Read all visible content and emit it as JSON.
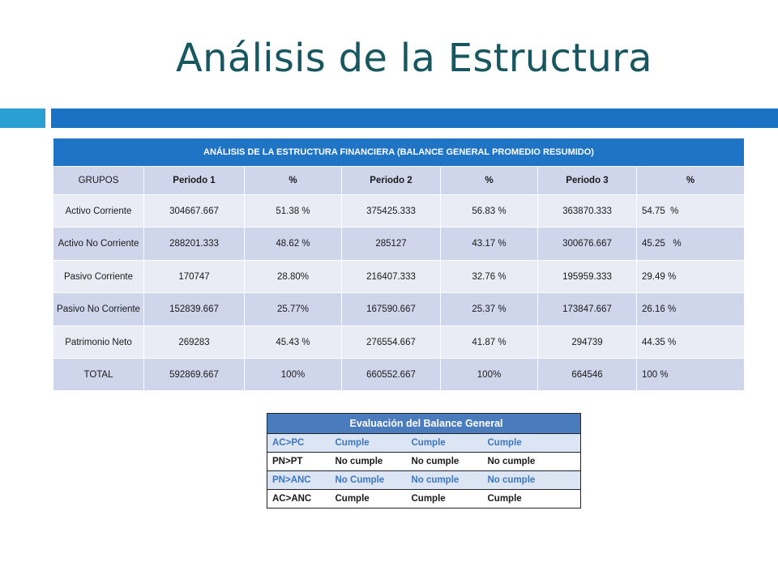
{
  "title": "Análisis de la Estructura",
  "financial_table": {
    "header": "ANÁLISIS DE LA ESTRUCTURA FINANCIERA (BALANCE GENERAL PROMEDIO RESUMIDO)",
    "columns": [
      "GRUPOS",
      "Periodo 1",
      "%",
      "Periodo 2",
      "%",
      "Periodo 3",
      "%"
    ],
    "rows": [
      {
        "grupo": "Activo Corriente",
        "p1": "304667.667",
        "pct1": "51.38 %",
        "p2": "375425.333",
        "pct2": "56.83 %",
        "p3": "363870.333",
        "pct3": "54.75  %"
      },
      {
        "grupo": "Activo No Corriente",
        "p1": "288201.333",
        "pct1": "48.62 %",
        "p2": "285127",
        "pct2": "43.17 %",
        "p3": "300676.667",
        "pct3": "45.25   %"
      },
      {
        "grupo": "Pasivo Corriente",
        "p1": "170747",
        "pct1": "28.80%",
        "p2": "216407.333",
        "pct2": "32.76 %",
        "p3": "195959.333",
        "pct3": "29.49 %"
      },
      {
        "grupo": "Pasivo No Corriente",
        "p1": "152839.667",
        "pct1": "25.77%",
        "p2": "167590.667",
        "pct2": "25.37 %",
        "p3": "173847.667",
        "pct3": "26.16 %"
      },
      {
        "grupo": "Patrimonio Neto",
        "p1": "269283",
        "pct1": "45.43 %",
        "p2": "276554.667",
        "pct2": "41.87 %",
        "p3": "294739",
        "pct3": "44.35 %"
      },
      {
        "grupo": "TOTAL",
        "p1": "592869.667",
        "pct1": "100%",
        "p2": "660552.667",
        "pct2": "100%",
        "p3": "664546",
        "pct3": "100 %"
      }
    ]
  },
  "evaluation_table": {
    "header": "Evaluación del Balance General",
    "rows": [
      {
        "label": "AC>PC",
        "v1": "Cumple",
        "v2": "Cumple",
        "v3": "Cumple"
      },
      {
        "label": "PN>PT",
        "v1": "No cumple",
        "v2": "No cumple",
        "v3": "No cumple"
      },
      {
        "label": "PN>ANC",
        "v1": "No Cumple",
        "v2": "No cumple",
        "v3": "No cumple"
      },
      {
        "label": "AC>ANC",
        "v1": "Cumple",
        "v2": "Cumple",
        "v3": "Cumple"
      }
    ]
  },
  "colors": {
    "title": "#17575f",
    "accent_bar_left": "#2a9fd4",
    "accent_bar_right": "#1972c4",
    "table_header": "#1f74c6",
    "row_light": "#e9ecf5",
    "row_dark": "#cfd5ea",
    "eval_header": "#4a7bbd",
    "eval_alt_row": "#dbe5f4",
    "eval_alt_text": "#3d76bd"
  }
}
